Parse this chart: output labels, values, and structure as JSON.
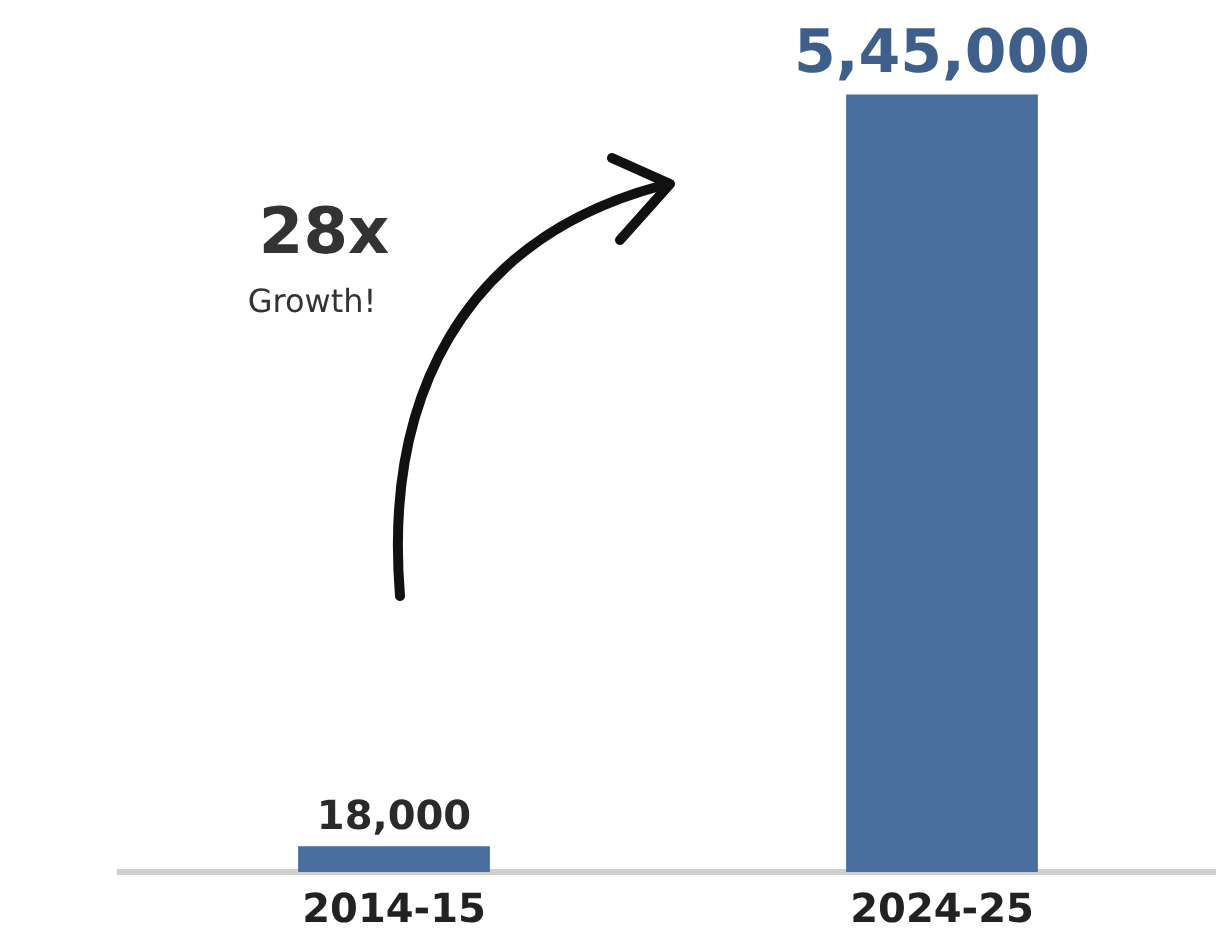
{
  "chart_data": {
    "type": "bar",
    "categories": [
      "2014-15",
      "2024-25"
    ],
    "values": [
      18000,
      545000
    ],
    "value_labels": [
      "18,000",
      "5,45,000"
    ],
    "colors": [
      "#4a6e9e",
      "#4a6e9e"
    ],
    "annotations": [
      "28x",
      "Growth!"
    ],
    "grid": false,
    "legend": false,
    "tick_labels": "x"
  }
}
